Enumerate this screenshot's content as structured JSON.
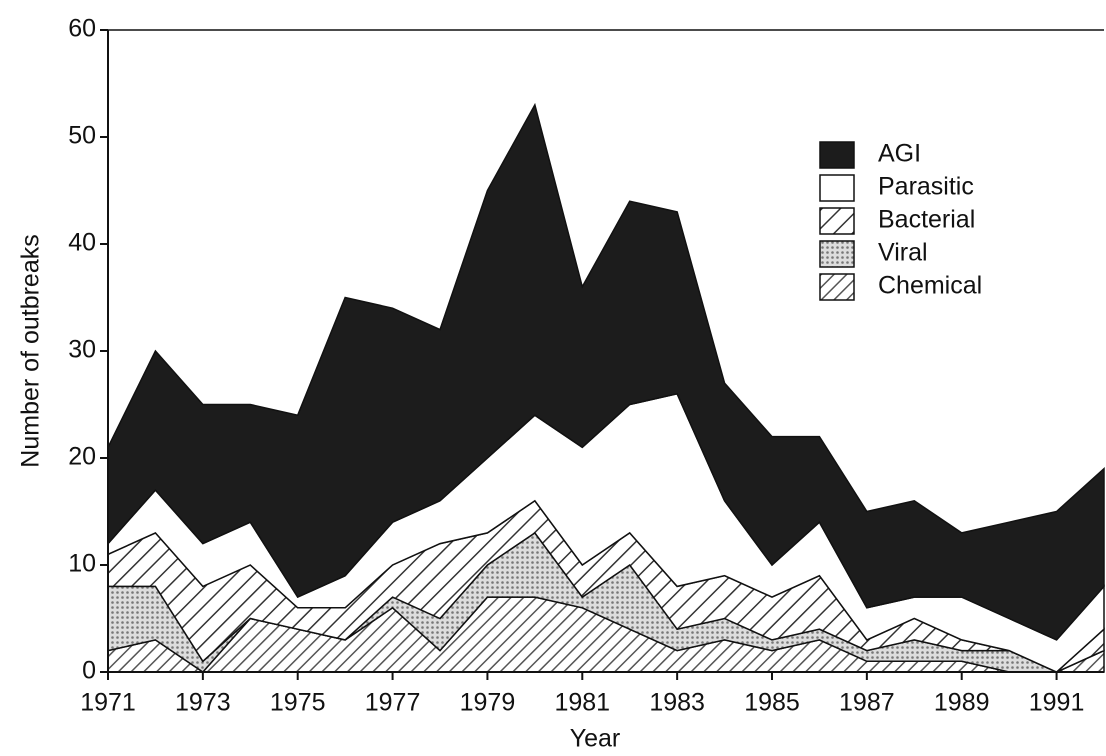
{
  "chart_data": {
    "type": "stacked_area",
    "x_label": "Year",
    "y_label": "Number of outbreaks",
    "x": [
      1971,
      1972,
      1973,
      1974,
      1975,
      1976,
      1977,
      1978,
      1979,
      1980,
      1981,
      1982,
      1983,
      1984,
      1985,
      1986,
      1987,
      1988,
      1989,
      1990,
      1991,
      1992
    ],
    "xlim": [
      1971,
      1992
    ],
    "xticks": [
      1971,
      1973,
      1975,
      1977,
      1979,
      1981,
      1983,
      1985,
      1987,
      1989,
      1991
    ],
    "ylim": [
      0,
      60
    ],
    "yticks": [
      0,
      10,
      20,
      30,
      40,
      50,
      60
    ],
    "legend": "upper right",
    "series": [
      {
        "name": "AGI",
        "color": "#1c1c1c",
        "pattern": "solid",
        "values": [
          9,
          13,
          13,
          11,
          17,
          26,
          20,
          16,
          25,
          29,
          15,
          19,
          17,
          11,
          12,
          8,
          9,
          9,
          6,
          9,
          12,
          11
        ]
      },
      {
        "name": "Parasitic",
        "color": "#ffffff",
        "pattern": "solid",
        "values": [
          1,
          4,
          4,
          4,
          1,
          3,
          4,
          4,
          7,
          8,
          11,
          12,
          18,
          7,
          3,
          5,
          3,
          2,
          4,
          3,
          3,
          4
        ]
      },
      {
        "name": "Bacterial",
        "color": "#333333",
        "pattern": "hatch",
        "values": [
          3,
          5,
          7,
          5,
          2,
          3,
          3,
          7,
          3,
          3,
          3,
          3,
          4,
          4,
          4,
          5,
          1,
          2,
          1,
          0,
          0,
          2
        ]
      },
      {
        "name": "Viral",
        "color": "#777777",
        "pattern": "dots",
        "values": [
          6,
          5,
          1,
          0,
          0,
          0,
          1,
          3,
          3,
          6,
          1,
          6,
          2,
          2,
          1,
          1,
          1,
          2,
          1,
          2,
          0,
          0
        ]
      },
      {
        "name": "Chemical",
        "color": "#555555",
        "pattern": "hatch",
        "values": [
          2,
          3,
          0,
          5,
          4,
          3,
          6,
          2,
          7,
          7,
          6,
          4,
          2,
          3,
          2,
          3,
          1,
          1,
          1,
          0,
          0,
          2
        ]
      }
    ]
  }
}
